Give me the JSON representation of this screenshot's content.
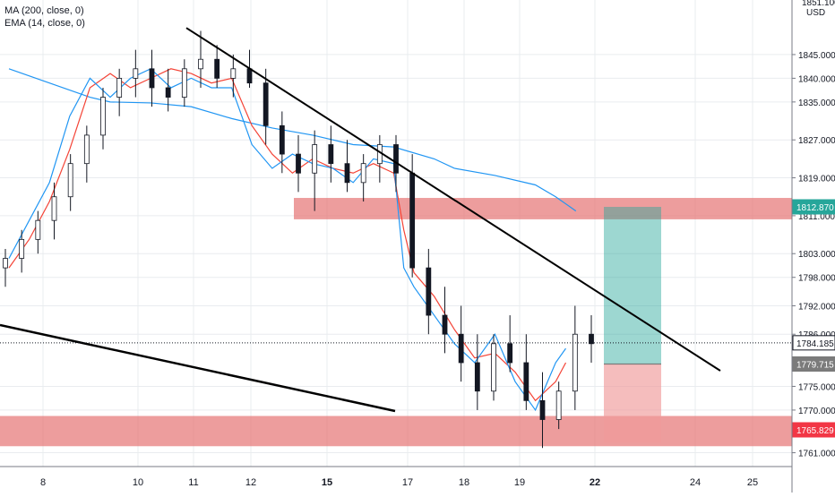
{
  "legend": {
    "ma_label": "MA (200, close, 0)",
    "ema_label": "EMA (14, close, 0)"
  },
  "price_axis": {
    "currency": "USD",
    "top_cut_label": "1851.100",
    "ticks": [
      "1845.000",
      "1840.000",
      "1835.000",
      "1827.000",
      "1819.000",
      "1811.000",
      "1803.000",
      "1798.000",
      "1792.000",
      "1786.000",
      "1775.000",
      "1770.000",
      "1761.000"
    ]
  },
  "time_axis": {
    "ticks": [
      "8",
      "10",
      "11",
      "12",
      "15",
      "17",
      "18",
      "19",
      "22",
      "24",
      "25"
    ],
    "bold_ticks": [
      "15",
      "22"
    ]
  },
  "price_tags": [
    {
      "label": "1812.870",
      "price": 1812.87,
      "bg": "#26a69a",
      "fg": "#ffffff"
    },
    {
      "label": "1784.185",
      "price": 1784.185,
      "bg": "#ffffff",
      "fg": "#131722",
      "border": "#131722"
    },
    {
      "label": "1779.715",
      "price": 1779.715,
      "bg": "#7b7b7b",
      "fg": "#ffffff"
    },
    {
      "label": "1765.829",
      "price": 1765.829,
      "bg": "#f23645",
      "fg": "#ffffff"
    }
  ],
  "colors": {
    "background": "#ffffff",
    "grid": "#e9ecef",
    "candle": "#131722",
    "ma_line": "#2196f3",
    "ema_line": "#f44336",
    "zone_fill": "#e57373",
    "profit_fill": "#26a69a",
    "stop_fill": "#ef9a9a",
    "trendline": "#000000"
  },
  "chart_data": {
    "type": "candlestick",
    "instrument_unit": "USD",
    "y_range": [
      1761,
      1851
    ],
    "x_ticks": [
      "8",
      "10",
      "11",
      "12",
      "15",
      "17",
      "18",
      "19",
      "22",
      "24",
      "25"
    ],
    "indicators": [
      {
        "name": "MA (200, close, 0)",
        "color": "#2196f3",
        "points": [
          [
            0,
            1842.0
          ],
          [
            2,
            1839.0
          ],
          [
            4,
            1836.0
          ],
          [
            5,
            1835.0
          ],
          [
            7,
            1834.8
          ],
          [
            9,
            1834.0
          ],
          [
            11,
            1831.5
          ],
          [
            13,
            1829.5
          ],
          [
            15,
            1828.0
          ],
          [
            17,
            1826.0
          ],
          [
            19,
            1825.5
          ],
          [
            21,
            1823.0
          ],
          [
            22,
            1821.0
          ],
          [
            24,
            1819.5
          ],
          [
            26,
            1817.5
          ],
          [
            27,
            1815.0
          ],
          [
            28,
            1812.0
          ]
        ]
      },
      {
        "name": "EMA (14, close, 0)",
        "color": "#f44336",
        "points": [
          [
            0,
            1800.0
          ],
          [
            1,
            1806.0
          ],
          [
            2,
            1814.0
          ],
          [
            3,
            1825.0
          ],
          [
            4,
            1838.0
          ],
          [
            5,
            1841.0
          ],
          [
            6,
            1838.0
          ],
          [
            7,
            1840.0
          ],
          [
            8,
            1842.0
          ],
          [
            9,
            1841.0
          ],
          [
            10,
            1839.0
          ],
          [
            11,
            1840.0
          ],
          [
            12,
            1830.0
          ],
          [
            13,
            1824.0
          ],
          [
            14,
            1820.0
          ],
          [
            15,
            1823.0
          ],
          [
            16,
            1821.0
          ],
          [
            17,
            1820.0
          ],
          [
            18,
            1822.0
          ],
          [
            19,
            1820.0
          ],
          [
            19.5,
            1808.0
          ],
          [
            20,
            1799.0
          ],
          [
            21,
            1794.0
          ],
          [
            22,
            1787.0
          ],
          [
            23,
            1781.0
          ],
          [
            24,
            1782.0
          ],
          [
            25,
            1778.0
          ],
          [
            26,
            1772.0
          ],
          [
            27,
            1776.0
          ],
          [
            27.5,
            1780.0
          ]
        ]
      },
      {
        "name": "EMA (14, close, 0) short",
        "color": "#2196f3",
        "points": [
          [
            0,
            1802.0
          ],
          [
            1,
            1810.0
          ],
          [
            2,
            1818.0
          ],
          [
            3,
            1832.0
          ],
          [
            4,
            1840.0
          ],
          [
            5,
            1836.0
          ],
          [
            6,
            1840.0
          ],
          [
            7,
            1842.0
          ],
          [
            8,
            1838.0
          ],
          [
            9,
            1840.0
          ],
          [
            10,
            1838.0
          ],
          [
            11,
            1838.0
          ],
          [
            12,
            1826.0
          ],
          [
            13,
            1821.0
          ],
          [
            14,
            1824.0
          ],
          [
            15,
            1822.0
          ],
          [
            16,
            1821.0
          ],
          [
            17,
            1818.0
          ],
          [
            18,
            1823.0
          ],
          [
            19,
            1822.0
          ],
          [
            19.5,
            1800.0
          ],
          [
            20,
            1796.0
          ],
          [
            21,
            1790.0
          ],
          [
            22,
            1784.0
          ],
          [
            23,
            1780.0
          ],
          [
            24,
            1786.0
          ],
          [
            25,
            1776.0
          ],
          [
            26,
            1770.0
          ],
          [
            27,
            1780.0
          ],
          [
            27.5,
            1783.0
          ]
        ]
      }
    ],
    "candles_ohlc": [
      [
        1800,
        1804,
        1796,
        1802
      ],
      [
        1802,
        1808,
        1799,
        1806
      ],
      [
        1806,
        1812,
        1803,
        1810
      ],
      [
        1810,
        1818,
        1806,
        1815
      ],
      [
        1815,
        1824,
        1812,
        1822
      ],
      [
        1822,
        1830,
        1818,
        1828
      ],
      [
        1828,
        1838,
        1825,
        1836
      ],
      [
        1836,
        1842,
        1832,
        1840
      ],
      [
        1840,
        1846,
        1836,
        1842
      ],
      [
        1842,
        1846,
        1834,
        1838
      ],
      [
        1838,
        1842,
        1833,
        1836
      ],
      [
        1836,
        1844,
        1834,
        1842
      ],
      [
        1842,
        1850,
        1838,
        1844
      ],
      [
        1844,
        1847,
        1838,
        1840
      ],
      [
        1840,
        1845,
        1836,
        1842
      ],
      [
        1842,
        1846,
        1838,
        1839
      ],
      [
        1839,
        1842,
        1826,
        1830
      ],
      [
        1830,
        1833,
        1820,
        1824
      ],
      [
        1824,
        1828,
        1816,
        1820
      ],
      [
        1820,
        1829,
        1812,
        1826
      ],
      [
        1826,
        1830,
        1818,
        1822
      ],
      [
        1822,
        1827,
        1816,
        1818
      ],
      [
        1818,
        1824,
        1814,
        1822
      ],
      [
        1822,
        1828,
        1818,
        1826
      ],
      [
        1826,
        1828,
        1816,
        1820
      ],
      [
        1820,
        1824,
        1798,
        1800
      ],
      [
        1800,
        1804,
        1786,
        1790
      ],
      [
        1790,
        1796,
        1782,
        1786
      ],
      [
        1786,
        1792,
        1776,
        1780
      ],
      [
        1780,
        1786,
        1770,
        1774
      ],
      [
        1774,
        1786,
        1772,
        1784
      ],
      [
        1784,
        1790,
        1778,
        1780
      ],
      [
        1780,
        1786,
        1770,
        1772
      ],
      [
        1772,
        1778,
        1762,
        1768
      ],
      [
        1768,
        1776,
        1766,
        1774
      ],
      [
        1774,
        1792,
        1770,
        1786
      ],
      [
        1786,
        1790,
        1780,
        1784
      ]
    ],
    "annotations": [
      {
        "type": "trendline",
        "from": [
          10.8,
          1851
        ],
        "to": [
          24.5,
          1777
        ]
      },
      {
        "type": "trendline",
        "from": [
          6.9,
          1788
        ],
        "to": [
          16.7,
          1772.5
        ]
      },
      {
        "type": "zone",
        "y_range": [
          1811.0,
          1814.0
        ],
        "x_range": [
          13.8,
          "end"
        ]
      },
      {
        "type": "zone",
        "y_range": [
          1762.0,
          1768.0
        ],
        "x_range": [
          6.9,
          "end"
        ]
      },
      {
        "type": "long_position",
        "entry": 1779.715,
        "target": 1812.87,
        "stop": 1765.829,
        "x_range": [
          22.2,
          23.2
        ]
      }
    ]
  }
}
